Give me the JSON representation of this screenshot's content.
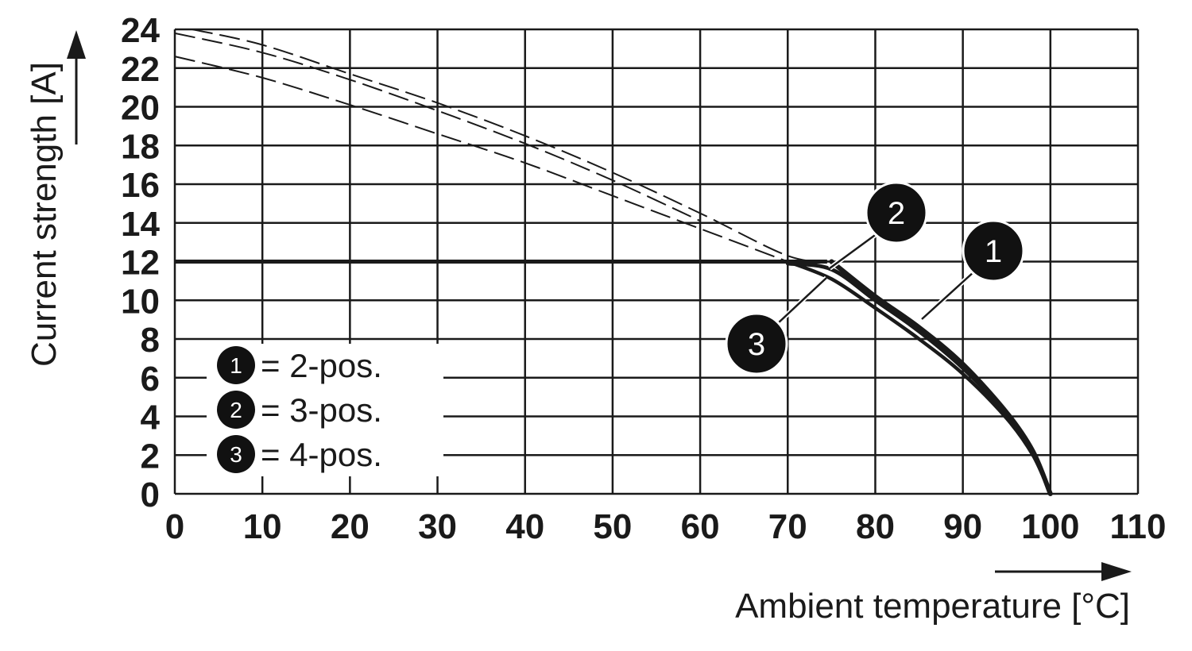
{
  "chart_data": {
    "type": "line",
    "xlabel": "Ambient temperature [°C]",
    "ylabel": "Current strength [A]",
    "xlim": [
      0,
      110
    ],
    "ylim": [
      0,
      24
    ],
    "x_ticks": [
      0,
      10,
      20,
      30,
      40,
      50,
      60,
      70,
      80,
      90,
      100,
      110
    ],
    "y_ticks": [
      0,
      2,
      4,
      6,
      8,
      10,
      12,
      14,
      16,
      18,
      20,
      22,
      24
    ],
    "grid": true,
    "current_limit": 12,
    "legend": [
      {
        "id": "1",
        "text": "= 2-pos."
      },
      {
        "id": "2",
        "text": "= 3-pos."
      },
      {
        "id": "3",
        "text": "= 4-pos."
      }
    ],
    "series": [
      {
        "id": "1",
        "x": [
          2,
          10,
          20,
          30,
          40,
          50,
          60,
          70,
          75,
          80,
          85,
          90,
          95,
          98,
          100
        ],
        "y": [
          24,
          23.2,
          21.7,
          20.2,
          18.5,
          16.6,
          14.5,
          12.3,
          12,
          10.2,
          8.6,
          6.7,
          4.2,
          2.2,
          0
        ]
      },
      {
        "id": "2",
        "x": [
          0,
          10,
          20,
          30,
          40,
          50,
          60,
          70,
          75,
          80,
          85,
          90,
          95,
          98,
          100
        ],
        "y": [
          23.8,
          22.8,
          21.4,
          19.8,
          18.1,
          16.2,
          14.1,
          11.9,
          11.6,
          10,
          8.4,
          6.5,
          4.1,
          2.1,
          0
        ]
      },
      {
        "id": "3",
        "x": [
          0,
          10,
          20,
          30,
          40,
          50,
          60,
          70,
          75,
          80,
          85,
          90,
          95,
          98,
          100
        ],
        "y": [
          22.6,
          21.5,
          20.1,
          18.6,
          17.1,
          15.4,
          13.7,
          12,
          11.1,
          9.6,
          8,
          6.2,
          3.9,
          2,
          0
        ]
      }
    ]
  }
}
